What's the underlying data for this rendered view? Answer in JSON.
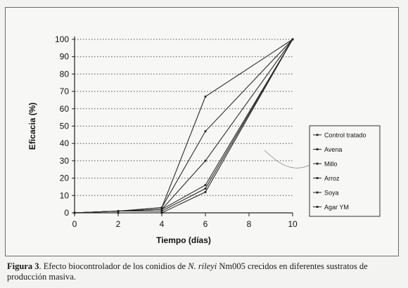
{
  "chart_data": {
    "type": "line",
    "title": "",
    "xlabel": "Tiempo (días)",
    "ylabel": "Eficacia (%)",
    "x": [
      0,
      2,
      4,
      6,
      10
    ],
    "xticks": [
      0,
      2,
      4,
      6,
      8,
      10
    ],
    "yticks": [
      0,
      10,
      20,
      30,
      40,
      50,
      60,
      70,
      80,
      90,
      100
    ],
    "xlim": [
      0,
      10
    ],
    "ylim": [
      0,
      100
    ],
    "grid": "horizontal dotted",
    "legend_position": "right",
    "series": [
      {
        "name": "Control tratado",
        "values": [
          0,
          1,
          3,
          67,
          100
        ]
      },
      {
        "name": "Avena",
        "values": [
          0,
          1,
          3,
          47,
          100
        ]
      },
      {
        "name": "Millo",
        "values": [
          0,
          1,
          2,
          30,
          100
        ]
      },
      {
        "name": "Arroz",
        "values": [
          0,
          1,
          2,
          16,
          100
        ]
      },
      {
        "name": "Soya",
        "values": [
          0,
          1,
          1,
          14,
          100
        ]
      },
      {
        "name": "Agar YM",
        "values": [
          0,
          0,
          0,
          12,
          100
        ]
      }
    ]
  },
  "caption": {
    "label": "Figura 3",
    "text_before": ". Efecto biocontrolador de los conidios de ",
    "species": "N. rileyi",
    "text_after": " Nm005 crecidos en diferentes sustratos de producción masiva."
  }
}
